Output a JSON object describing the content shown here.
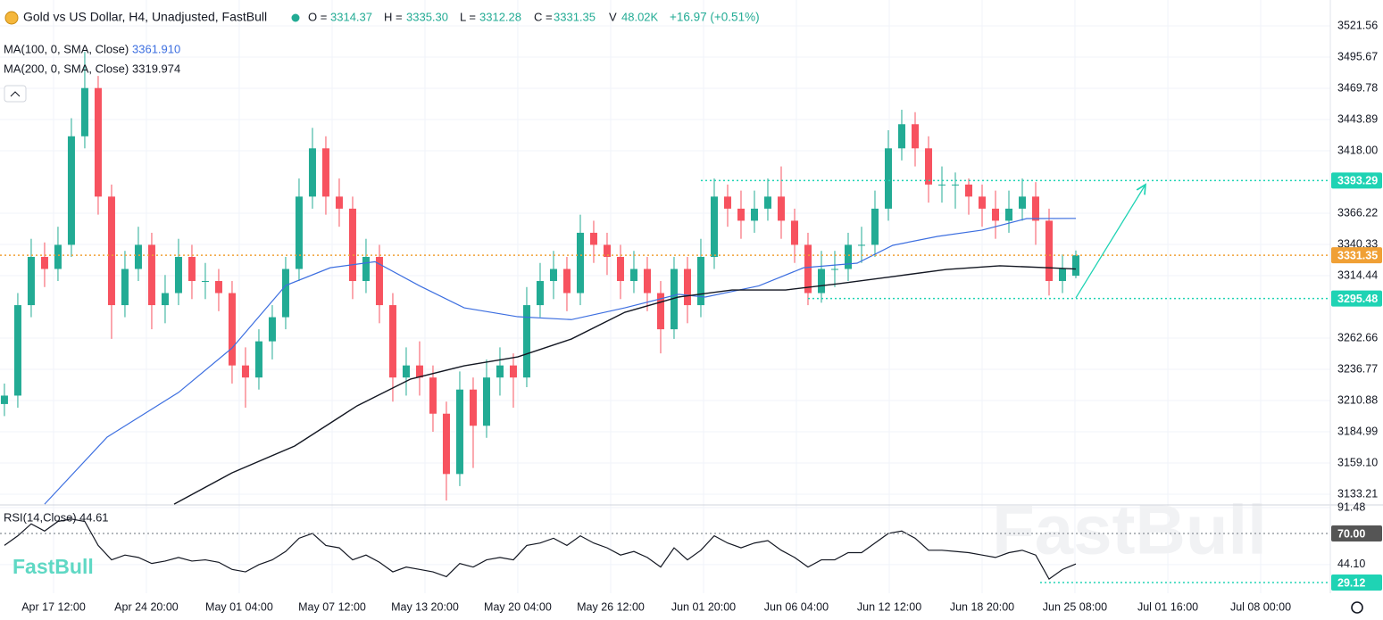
{
  "header": {
    "title": "Gold vs US Dollar, H4, Unadjusted, FastBull",
    "ohlc": [
      {
        "label": "O =",
        "value": "3314.37"
      },
      {
        "label": "H =",
        "value": "3335.30"
      },
      {
        "label": "L =",
        "value": "3312.28"
      },
      {
        "label": "C =",
        "value": "3331.35"
      },
      {
        "label": "V",
        "value": "48.02K"
      }
    ],
    "change": "+16.97 (+0.51%)",
    "watermark": "FastBull"
  },
  "chart_data": [
    {
      "type": "candlestick",
      "x": [
        0,
        1,
        2,
        3,
        4,
        5,
        6,
        7,
        8,
        9,
        10,
        11,
        12,
        13,
        14,
        15,
        16,
        17,
        18,
        19,
        20,
        21,
        22,
        23,
        24,
        25,
        26,
        27,
        28,
        29,
        30,
        31,
        32,
        33,
        34,
        35,
        36,
        37,
        38,
        39,
        40,
        41,
        42,
        43,
        44,
        45,
        46,
        47,
        48,
        49,
        50,
        51,
        52,
        53,
        54,
        55,
        56,
        57,
        58,
        59,
        60,
        61,
        62,
        63,
        64,
        65,
        66,
        67,
        68,
        69,
        70,
        71,
        72,
        73,
        74,
        75,
        76,
        77,
        78,
        79,
        80
      ],
      "open": [
        3208,
        3215,
        3290,
        3330,
        3320,
        3340,
        3430,
        3470,
        3380,
        3290,
        3320,
        3340,
        3290,
        3300,
        3330,
        3310,
        3310,
        3300,
        3240,
        3230,
        3260,
        3280,
        3320,
        3380,
        3420,
        3380,
        3370,
        3310,
        3330,
        3290,
        3230,
        3240,
        3230,
        3200,
        3150,
        3220,
        3190,
        3230,
        3240,
        3230,
        3290,
        3310,
        3320,
        3300,
        3350,
        3340,
        3330,
        3310,
        3320,
        3300,
        3270,
        3320,
        3290,
        3330,
        3380,
        3370,
        3360,
        3370,
        3380,
        3360,
        3340,
        3300,
        3320,
        3320,
        3340,
        3340,
        3370,
        3420,
        3440,
        3420,
        3390,
        3390,
        3390,
        3380,
        3370,
        3360,
        3370,
        3380,
        3360,
        3310,
        3314.37
      ],
      "high": [
        3225,
        3300,
        3345,
        3342,
        3355,
        3445,
        3500,
        3480,
        3390,
        3335,
        3355,
        3350,
        3315,
        3345,
        3340,
        3325,
        3320,
        3310,
        3255,
        3270,
        3290,
        3330,
        3395,
        3437,
        3430,
        3395,
        3380,
        3345,
        3340,
        3300,
        3255,
        3260,
        3240,
        3210,
        3235,
        3230,
        3245,
        3255,
        3250,
        3305,
        3325,
        3335,
        3330,
        3365,
        3360,
        3350,
        3340,
        3335,
        3330,
        3310,
        3330,
        3330,
        3345,
        3395,
        3390,
        3385,
        3385,
        3395,
        3405,
        3370,
        3350,
        3335,
        3335,
        3350,
        3355,
        3385,
        3435,
        3452,
        3450,
        3430,
        3405,
        3400,
        3395,
        3390,
        3385,
        3385,
        3395,
        3392,
        3370,
        3332,
        3335.3
      ],
      "low": [
        3198,
        3205,
        3280,
        3305,
        3310,
        3330,
        3420,
        3365,
        3262,
        3280,
        3310,
        3270,
        3275,
        3290,
        3295,
        3295,
        3285,
        3225,
        3205,
        3220,
        3245,
        3270,
        3310,
        3370,
        3365,
        3355,
        3295,
        3300,
        3275,
        3210,
        3215,
        3215,
        3185,
        3128,
        3140,
        3155,
        3180,
        3215,
        3205,
        3222,
        3280,
        3295,
        3285,
        3290,
        3325,
        3315,
        3295,
        3300,
        3285,
        3250,
        3262,
        3275,
        3280,
        3320,
        3355,
        3345,
        3350,
        3360,
        3345,
        3325,
        3290,
        3292,
        3305,
        3310,
        3325,
        3330,
        3360,
        3410,
        3405,
        3375,
        3375,
        3370,
        3365,
        3355,
        3345,
        3350,
        3360,
        3340,
        3298,
        3300,
        3312.28
      ],
      "close": [
        3215,
        3290,
        3330,
        3320,
        3340,
        3430,
        3470,
        3380,
        3290,
        3320,
        3340,
        3290,
        3300,
        3330,
        3310,
        3310,
        3300,
        3240,
        3230,
        3260,
        3280,
        3320,
        3380,
        3420,
        3380,
        3370,
        3310,
        3330,
        3290,
        3230,
        3240,
        3230,
        3200,
        3150,
        3220,
        3190,
        3230,
        3240,
        3230,
        3290,
        3310,
        3320,
        3300,
        3350,
        3340,
        3330,
        3310,
        3320,
        3300,
        3270,
        3320,
        3290,
        3330,
        3380,
        3370,
        3360,
        3370,
        3380,
        3360,
        3340,
        3300,
        3320,
        3320,
        3340,
        3340,
        3370,
        3420,
        3440,
        3420,
        3390,
        3390,
        3390,
        3380,
        3370,
        3360,
        3370,
        3380,
        3360,
        3310,
        3320,
        3331.35
      ],
      "up_color": "#22ab94",
      "down_color": "#f7525f",
      "series": [
        {
          "name": "MA(100, 0, SMA, Close)",
          "value_label": "3361.910",
          "color": "#3d6fe0",
          "x": [
            3,
            7.67,
            13,
            17,
            21,
            24.33,
            27.67,
            31,
            34.33,
            38.33,
            42.33,
            46.33,
            50.33,
            52.33,
            56.33,
            59.67,
            63.67,
            66.33,
            69.67,
            73,
            76.33,
            80
          ],
          "values": [
            3125,
            3180.6,
            3217.6,
            3254.5,
            3306.3,
            3321,
            3326,
            3306,
            3287.8,
            3280.4,
            3278,
            3287.8,
            3299,
            3296.7,
            3306,
            3321,
            3324.8,
            3339.6,
            3347,
            3352.2,
            3361.8,
            3361.91
          ]
        },
        {
          "name": "MA(200, 0, SMA, Close)",
          "value_label": "3319.974",
          "color": "#131722",
          "x": [
            12.67,
            17,
            21.67,
            26.33,
            30.33,
            34.33,
            38.33,
            42.33,
            46.33,
            50.33,
            54.33,
            58.33,
            62.33,
            66.33,
            70.33,
            74.33,
            78,
            80
          ],
          "values": [
            3125,
            3151,
            3173.2,
            3206.5,
            3228.7,
            3239.7,
            3247.1,
            3261.9,
            3284.1,
            3296.7,
            3302.6,
            3302.6,
            3307.8,
            3313.7,
            3319.6,
            3322.6,
            3321,
            3319.974
          ]
        }
      ],
      "levels": [
        {
          "value": 3393.29,
          "label": "3393.29",
          "color": "#1fd3b4",
          "from": 52
        },
        {
          "value": 3331.35,
          "label": "3331.35",
          "color": "#f0a035"
        },
        {
          "value": 3295.48,
          "label": "3295.48",
          "color": "#1fd3b4",
          "from": 60
        }
      ],
      "arrow": {
        "x": [
          80,
          85.2
        ],
        "values": [
          3296,
          3390
        ],
        "color": "#1fd3b4"
      },
      "xlim": [
        -0.33,
        99
      ],
      "ylim": [
        3125.1,
        3543.0
      ],
      "yticks": [
        3521.56,
        3495.67,
        3469.78,
        3443.89,
        {
          "value": 3418,
          "label": "3418.00"
        },
        3366.22,
        3340.33,
        3314.44,
        3262.66,
        3236.77,
        3210.88,
        3184.99,
        {
          "value": 3159.1,
          "label": "3159.10"
        },
        3133.21
      ],
      "grid": true
    },
    {
      "type": "line",
      "title": "RSI(14,Close)",
      "value_label": "44.61",
      "x": [
        0,
        1,
        2,
        3,
        4,
        5,
        6,
        7,
        8,
        9,
        10,
        11,
        12,
        13,
        14,
        15,
        16,
        17,
        18,
        19,
        20,
        21,
        22,
        23,
        24,
        25,
        26,
        27,
        28,
        29,
        30,
        31,
        32,
        33,
        34,
        35,
        36,
        37,
        38,
        39,
        40,
        41,
        42,
        43,
        44,
        45,
        46,
        47,
        48,
        49,
        50,
        51,
        52,
        53,
        54,
        55,
        56,
        57,
        58,
        59,
        60,
        61,
        62,
        63,
        64,
        65,
        66,
        67,
        68,
        69,
        70,
        71,
        72,
        73,
        74,
        75,
        76,
        77,
        78,
        79,
        80
      ],
      "values": [
        60,
        68,
        78,
        72,
        80,
        82,
        80,
        60,
        48,
        52,
        50,
        45,
        47,
        50,
        47,
        48,
        46,
        40,
        38,
        44,
        48,
        55,
        66,
        70,
        60,
        58,
        48,
        52,
        46,
        38,
        42,
        40,
        38,
        34,
        45,
        42,
        48,
        50,
        48,
        60,
        62,
        66,
        60,
        68,
        62,
        58,
        52,
        55,
        50,
        42,
        58,
        48,
        56,
        68,
        62,
        58,
        62,
        64,
        56,
        50,
        42,
        48,
        48,
        54,
        54,
        62,
        70,
        72,
        66,
        56,
        56,
        55,
        54,
        52,
        50,
        54,
        56,
        52,
        32,
        40,
        44.61
      ],
      "color": "#131722",
      "levels": [
        {
          "value": 70,
          "label": "70.00",
          "color": "#555555",
          "line_color": "#9aa0a6"
        },
        {
          "value": 29.12,
          "label": "29.12",
          "color": "#1fd3b4",
          "from": 77.33
        }
      ],
      "xlim": [
        -0.33,
        99
      ],
      "ylim": [
        20.2,
        93
      ],
      "yticks": [
        91.48,
        {
          "value": 44.1,
          "label": "44.10"
        }
      ],
      "xticks": [
        {
          "value": 3.67,
          "label": "Apr 17 12:00"
        },
        {
          "value": 10.6,
          "label": "Apr 24 20:00"
        },
        {
          "value": 17.53,
          "label": "May 01 04:00"
        },
        {
          "value": 24.47,
          "label": "May 07 12:00"
        },
        {
          "value": 31.4,
          "label": "May 13 20:00"
        },
        {
          "value": 38.33,
          "label": "May 20 04:00"
        },
        {
          "value": 45.27,
          "label": "May 26 12:00"
        },
        {
          "value": 52.2,
          "label": "Jun 01 20:00"
        },
        {
          "value": 59.13,
          "label": "Jun 06 04:00"
        },
        {
          "value": 66.07,
          "label": "Jun 12 12:00"
        },
        {
          "value": 73,
          "label": "Jun 18 20:00"
        },
        {
          "value": 79.93,
          "label": "Jun 25 08:00"
        },
        {
          "value": 86.87,
          "label": "Jul 01 16:00"
        },
        {
          "value": 93.8,
          "label": "Jul 08 00:00"
        }
      ],
      "grid": true
    }
  ]
}
